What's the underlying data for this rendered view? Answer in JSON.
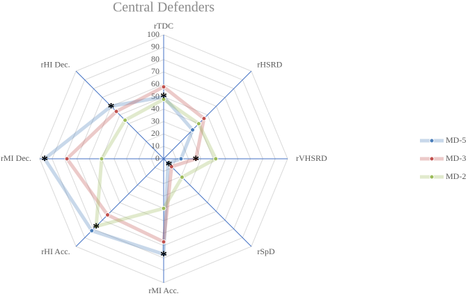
{
  "chart_data": {
    "type": "radar",
    "title": "Central Defenders",
    "categories": [
      "rTDC",
      "rHSRD",
      "rVHSRD",
      "rSpD",
      "rMI Acc.",
      "rHI Acc.",
      "rMI Dec.",
      "rHI Dec."
    ],
    "series": [
      {
        "name": "MD-5",
        "color": "#4a7ebb",
        "values": [
          50,
          33,
          14,
          5,
          77,
          82,
          96,
          60
        ]
      },
      {
        "name": "MD-3",
        "color": "#c0504d",
        "values": [
          58,
          46,
          26,
          9,
          67,
          64,
          78,
          54
        ]
      },
      {
        "name": "MD-2",
        "color": "#9bbb59",
        "values": [
          48,
          40,
          42,
          21,
          40,
          77,
          50,
          44
        ]
      }
    ],
    "rlim": [
      0,
      100
    ],
    "rticks": [
      0,
      10,
      20,
      30,
      40,
      50,
      60,
      70,
      80,
      90,
      100
    ],
    "grid": true,
    "legend": "right",
    "annotations": [
      {
        "text": "*",
        "category": "rTDC",
        "value": 51
      },
      {
        "text": "*",
        "category": "rVHSRD",
        "value": 26
      },
      {
        "text": "*",
        "category": "rSpD",
        "value": 6
      },
      {
        "text": "*",
        "category": "rMI Acc.",
        "value": 77
      },
      {
        "text": "*",
        "category": "rHI Acc.",
        "value": 77
      },
      {
        "text": "*",
        "category": "rMI Dec.",
        "value": 96
      },
      {
        "text": "*",
        "category": "rHI Dec.",
        "value": 60
      }
    ]
  }
}
